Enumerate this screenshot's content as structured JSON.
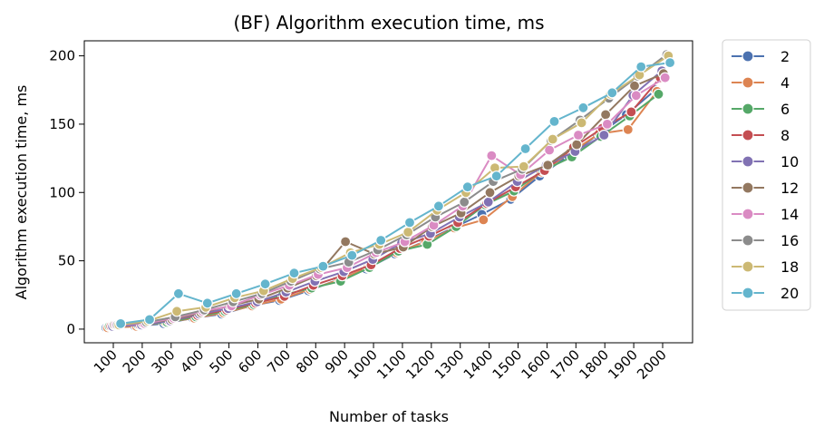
{
  "chart_data": {
    "type": "line",
    "title": "(BF) Algorithm execution time, ms",
    "xlabel": "Number of tasks",
    "ylabel": "Algorithm execution time, ms",
    "categories": [
      "100",
      "200",
      "300",
      "400",
      "500",
      "600",
      "700",
      "800",
      "900",
      "1000",
      "1100",
      "1200",
      "1300",
      "1400",
      "1500",
      "1600",
      "1700",
      "1800",
      "1900",
      "2000"
    ],
    "yticks": [
      0,
      50,
      100,
      150,
      200
    ],
    "ylim": [
      -10,
      211
    ],
    "grid": false,
    "legend_position": "outside-right",
    "series": [
      {
        "name": "2",
        "color": "#4c72b0",
        "values": [
          1,
          2,
          4,
          8,
          11,
          17,
          21,
          28,
          36,
          44,
          55,
          64,
          74,
          84,
          95,
          112,
          127,
          142,
          157,
          175
        ]
      },
      {
        "name": "4",
        "color": "#dd8452",
        "values": [
          1,
          2,
          5,
          8,
          12,
          17,
          22,
          29,
          36,
          45,
          56,
          64,
          74,
          80,
          97,
          115,
          129,
          143,
          146,
          174
        ]
      },
      {
        "name": "6",
        "color": "#55a868",
        "values": [
          2,
          3,
          5,
          9,
          13,
          18,
          25,
          30,
          35,
          45,
          57,
          62,
          75,
          91,
          101,
          116,
          126,
          141,
          156,
          172
        ]
      },
      {
        "name": "8",
        "color": "#c44e52",
        "values": [
          2,
          3,
          6,
          10,
          14,
          19,
          24,
          32,
          39,
          47,
          59,
          68,
          78,
          92,
          104,
          116,
          133,
          147,
          159,
          184
        ]
      },
      {
        "name": "10",
        "color": "#8172b3",
        "values": [
          2,
          3,
          6,
          11,
          15,
          20,
          27,
          35,
          42,
          51,
          63,
          70,
          82,
          93,
          108,
          120,
          130,
          142,
          171,
          189
        ]
      },
      {
        "name": "12",
        "color": "#937860",
        "values": [
          3,
          4,
          7,
          12,
          17,
          22,
          30,
          39,
          64,
          55,
          60,
          75,
          85,
          100,
          112,
          120,
          135,
          157,
          178,
          187
        ]
      },
      {
        "name": "14",
        "color": "#da8bc3",
        "values": [
          3,
          4,
          8,
          13,
          17,
          25,
          32,
          40,
          45,
          56,
          64,
          76,
          90,
          127,
          113,
          131,
          142,
          150,
          171,
          184
        ]
      },
      {
        "name": "16",
        "color": "#8c8c8c",
        "values": [
          3,
          5,
          9,
          14,
          20,
          26,
          35,
          44,
          49,
          58,
          69,
          82,
          93,
          108,
          117,
          138,
          153,
          169,
          185,
          201
        ]
      },
      {
        "name": "18",
        "color": "#ccb974",
        "values": [
          3,
          6,
          13,
          16,
          23,
          28,
          37,
          45,
          56,
          62,
          71,
          87,
          100,
          118,
          119,
          139,
          151,
          172,
          186,
          200
        ]
      },
      {
        "name": "20",
        "color": "#64b5cd",
        "values": [
          4,
          7,
          26,
          19,
          26,
          33,
          41,
          46,
          54,
          65,
          78,
          90,
          104,
          112,
          132,
          152,
          162,
          173,
          192,
          195
        ]
      }
    ]
  }
}
